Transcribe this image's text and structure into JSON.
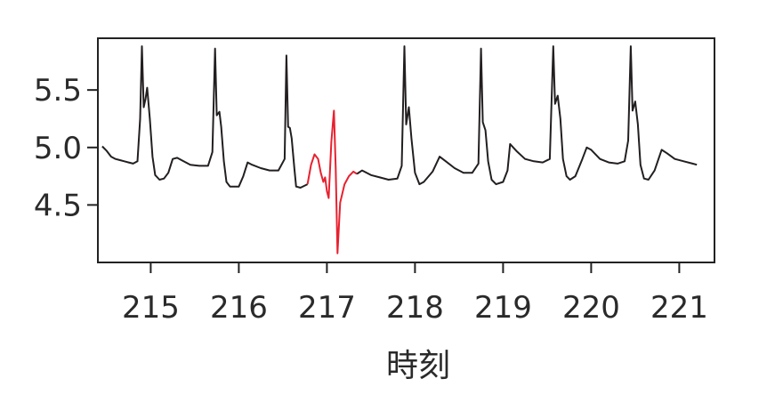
{
  "chart_data": {
    "type": "line",
    "title": "",
    "xlabel": "時刻",
    "ylabel": "",
    "xlim": [
      214.4,
      221.4
    ],
    "ylim": [
      4.0,
      5.95
    ],
    "xticks": [
      215,
      216,
      217,
      218,
      219,
      220,
      221
    ],
    "yticks": [
      4.5,
      5.0,
      5.5
    ],
    "xtick_labels": [
      "215",
      "216",
      "217",
      "218",
      "219",
      "220",
      "221"
    ],
    "ytick_labels": [
      "4.5",
      "5.0",
      "5.5"
    ],
    "grid": false,
    "legend": "none",
    "series": [
      {
        "color": "#231f20",
        "points": [
          [
            214.45,
            5.01
          ],
          [
            214.5,
            4.97
          ],
          [
            214.55,
            4.92
          ],
          [
            214.6,
            4.9
          ],
          [
            214.65,
            4.89
          ],
          [
            214.7,
            4.88
          ],
          [
            214.75,
            4.87
          ],
          [
            214.8,
            4.86
          ],
          [
            214.85,
            4.88
          ],
          [
            214.88,
            5.25
          ],
          [
            214.9,
            5.88
          ],
          [
            214.92,
            5.35
          ],
          [
            214.94,
            5.42
          ],
          [
            214.96,
            5.52
          ],
          [
            214.99,
            5.25
          ],
          [
            215.02,
            4.92
          ],
          [
            215.05,
            4.76
          ],
          [
            215.1,
            4.72
          ],
          [
            215.15,
            4.73
          ],
          [
            215.2,
            4.78
          ],
          [
            215.25,
            4.9
          ],
          [
            215.3,
            4.91
          ],
          [
            215.35,
            4.89
          ],
          [
            215.45,
            4.85
          ],
          [
            215.55,
            4.84
          ],
          [
            215.65,
            4.84
          ],
          [
            215.7,
            4.96
          ],
          [
            215.73,
            5.86
          ],
          [
            215.75,
            5.28
          ],
          [
            215.78,
            5.31
          ],
          [
            215.8,
            5.18
          ],
          [
            215.83,
            4.88
          ],
          [
            215.86,
            4.7
          ],
          [
            215.9,
            4.66
          ],
          [
            216.0,
            4.66
          ],
          [
            216.05,
            4.75
          ],
          [
            216.1,
            4.87
          ],
          [
            216.15,
            4.85
          ],
          [
            216.25,
            4.82
          ],
          [
            216.35,
            4.8
          ],
          [
            216.45,
            4.8
          ],
          [
            216.52,
            4.9
          ],
          [
            216.54,
            5.8
          ],
          [
            216.56,
            5.18
          ],
          [
            216.58,
            5.17
          ],
          [
            216.6,
            5.08
          ],
          [
            216.63,
            4.82
          ],
          [
            216.65,
            4.66
          ],
          [
            216.7,
            4.65
          ],
          [
            216.78,
            4.68
          ]
        ]
      },
      {
        "color": "#e8212f",
        "points": [
          [
            216.78,
            4.68
          ],
          [
            216.82,
            4.85
          ],
          [
            216.86,
            4.94
          ],
          [
            216.9,
            4.9
          ],
          [
            216.93,
            4.78
          ],
          [
            216.96,
            4.7
          ],
          [
            216.98,
            4.74
          ],
          [
            217.0,
            4.62
          ],
          [
            217.02,
            4.56
          ],
          [
            217.05,
            5.05
          ],
          [
            217.08,
            5.32
          ],
          [
            217.1,
            4.82
          ],
          [
            217.12,
            4.08
          ],
          [
            217.15,
            4.52
          ],
          [
            217.2,
            4.68
          ],
          [
            217.25,
            4.75
          ],
          [
            217.3,
            4.79
          ],
          [
            217.34,
            4.77
          ]
        ]
      },
      {
        "color": "#231f20",
        "points": [
          [
            217.34,
            4.77
          ],
          [
            217.4,
            4.8
          ],
          [
            217.5,
            4.76
          ],
          [
            217.6,
            4.74
          ],
          [
            217.7,
            4.72
          ],
          [
            217.8,
            4.73
          ],
          [
            217.85,
            4.84
          ],
          [
            217.88,
            5.88
          ],
          [
            217.9,
            5.2
          ],
          [
            217.93,
            5.35
          ],
          [
            217.96,
            5.08
          ],
          [
            218.0,
            4.78
          ],
          [
            218.05,
            4.68
          ],
          [
            218.1,
            4.7
          ],
          [
            218.2,
            4.79
          ],
          [
            218.28,
            4.92
          ],
          [
            218.35,
            4.88
          ],
          [
            218.45,
            4.82
          ],
          [
            218.55,
            4.78
          ],
          [
            218.65,
            4.78
          ],
          [
            218.72,
            4.86
          ],
          [
            218.75,
            5.86
          ],
          [
            218.77,
            5.22
          ],
          [
            218.8,
            5.15
          ],
          [
            218.83,
            4.88
          ],
          [
            218.87,
            4.72
          ],
          [
            218.92,
            4.68
          ],
          [
            219.0,
            4.7
          ],
          [
            219.05,
            4.8
          ],
          [
            219.08,
            5.03
          ],
          [
            219.15,
            4.97
          ],
          [
            219.25,
            4.9
          ],
          [
            219.35,
            4.88
          ],
          [
            219.45,
            4.87
          ],
          [
            219.53,
            4.9
          ],
          [
            219.57,
            5.88
          ],
          [
            219.59,
            5.38
          ],
          [
            219.62,
            5.45
          ],
          [
            219.65,
            5.25
          ],
          [
            219.68,
            4.9
          ],
          [
            219.72,
            4.75
          ],
          [
            219.76,
            4.72
          ],
          [
            219.82,
            4.75
          ],
          [
            219.9,
            4.9
          ],
          [
            219.95,
            5.0
          ],
          [
            220.0,
            4.98
          ],
          [
            220.1,
            4.9
          ],
          [
            220.2,
            4.87
          ],
          [
            220.3,
            4.86
          ],
          [
            220.38,
            4.88
          ],
          [
            220.42,
            5.06
          ],
          [
            220.45,
            5.88
          ],
          [
            220.47,
            5.32
          ],
          [
            220.5,
            5.4
          ],
          [
            220.53,
            5.2
          ],
          [
            220.56,
            4.85
          ],
          [
            220.6,
            4.73
          ],
          [
            220.65,
            4.72
          ],
          [
            220.72,
            4.8
          ],
          [
            220.8,
            4.98
          ],
          [
            220.86,
            4.95
          ],
          [
            220.95,
            4.9
          ],
          [
            221.05,
            4.88
          ],
          [
            221.15,
            4.86
          ],
          [
            221.2,
            4.85
          ]
        ]
      }
    ]
  }
}
